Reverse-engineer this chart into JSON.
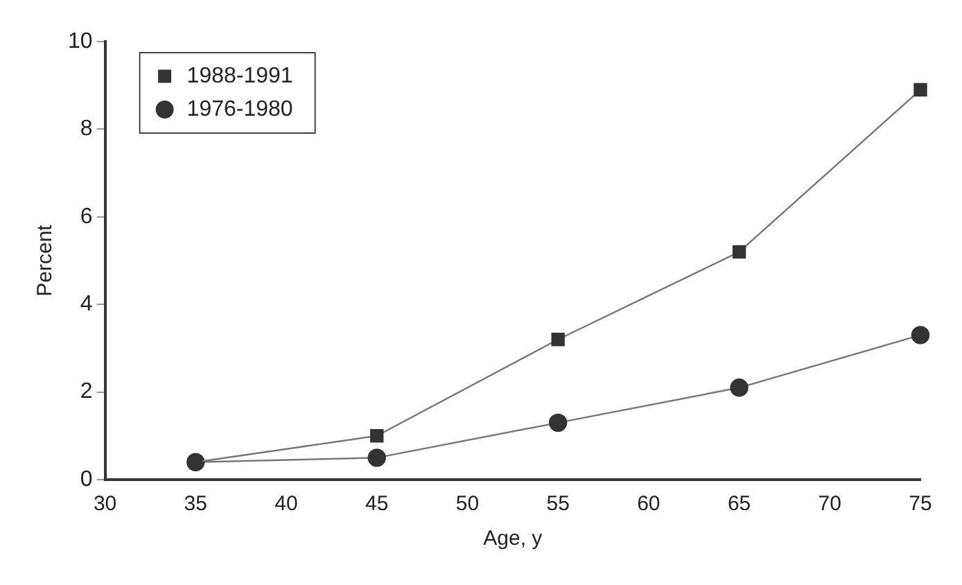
{
  "chart_data": {
    "type": "line",
    "xlabel": "Age, y",
    "ylabel": "Percent",
    "x": [
      35,
      45,
      55,
      65,
      75
    ],
    "series": [
      {
        "name": "1988-1991",
        "color": "#333333",
        "marker": "square",
        "values": [
          0.4,
          1.0,
          3.2,
          5.2,
          8.9
        ]
      },
      {
        "name": "1976-1980",
        "color": "#333333",
        "marker": "circle",
        "values": [
          0.4,
          0.5,
          1.3,
          2.1,
          3.3
        ]
      }
    ],
    "xlim": [
      30,
      75
    ],
    "xticks": [
      30,
      35,
      40,
      45,
      50,
      55,
      60,
      65,
      70,
      75
    ],
    "ylim": [
      0,
      10
    ],
    "yticks": [
      0,
      2,
      4,
      6,
      8,
      10
    ],
    "grid": false,
    "legend": "top left",
    "line_style": "solid"
  }
}
